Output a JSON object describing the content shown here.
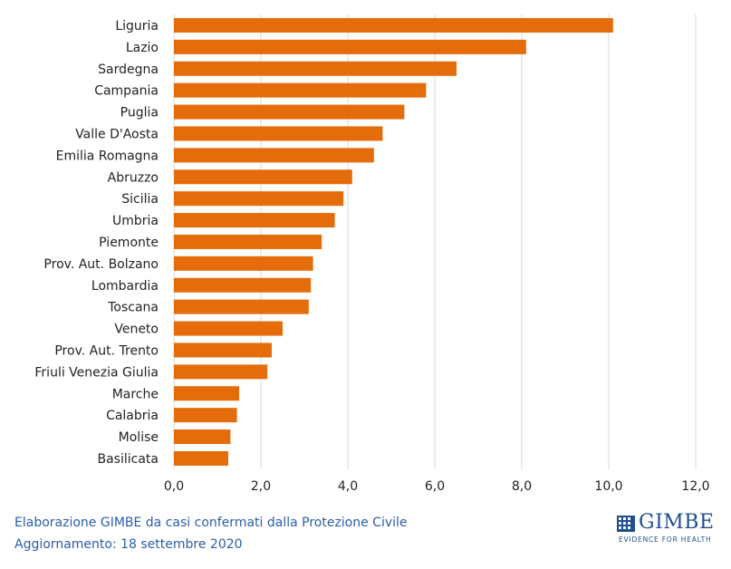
{
  "chart_data": {
    "type": "bar",
    "orientation": "horizontal",
    "categories": [
      "Liguria",
      "Lazio",
      "Sardegna",
      "Campania",
      "Puglia",
      "Valle D'Aosta",
      "Emilia Romagna",
      "Abruzzo",
      "Sicilia",
      "Umbria",
      "Piemonte",
      "Prov. Aut. Bolzano",
      "Lombardia",
      "Toscana",
      "Veneto",
      "Prov. Aut. Trento",
      "Friuli Venezia Giulia",
      "Marche",
      "Calabria",
      "Molise",
      "Basilicata"
    ],
    "values": [
      10.1,
      8.1,
      6.5,
      5.8,
      5.3,
      4.8,
      4.6,
      4.1,
      3.9,
      3.7,
      3.4,
      3.2,
      3.15,
      3.1,
      2.5,
      2.25,
      2.15,
      1.5,
      1.45,
      1.3,
      1.25
    ],
    "xlim": [
      0,
      12
    ],
    "x_ticks": [
      "0,0",
      "2,0",
      "4,0",
      "6,0",
      "8,0",
      "10,0",
      "12,0"
    ],
    "grid": true,
    "bar_color": "#e46c0a",
    "grid_color": "#d9d9d9",
    "title": "",
    "xlabel": "",
    "ylabel": ""
  },
  "footer": {
    "line1": "Elaborazione GIMBE da casi confermati dalla Protezione Civile",
    "line2": "Aggiornamento:  18 settembre 2020"
  },
  "logo": {
    "name": "GIMBE",
    "tagline": "EVIDENCE FOR HEALTH",
    "color": "#1f4f91"
  }
}
